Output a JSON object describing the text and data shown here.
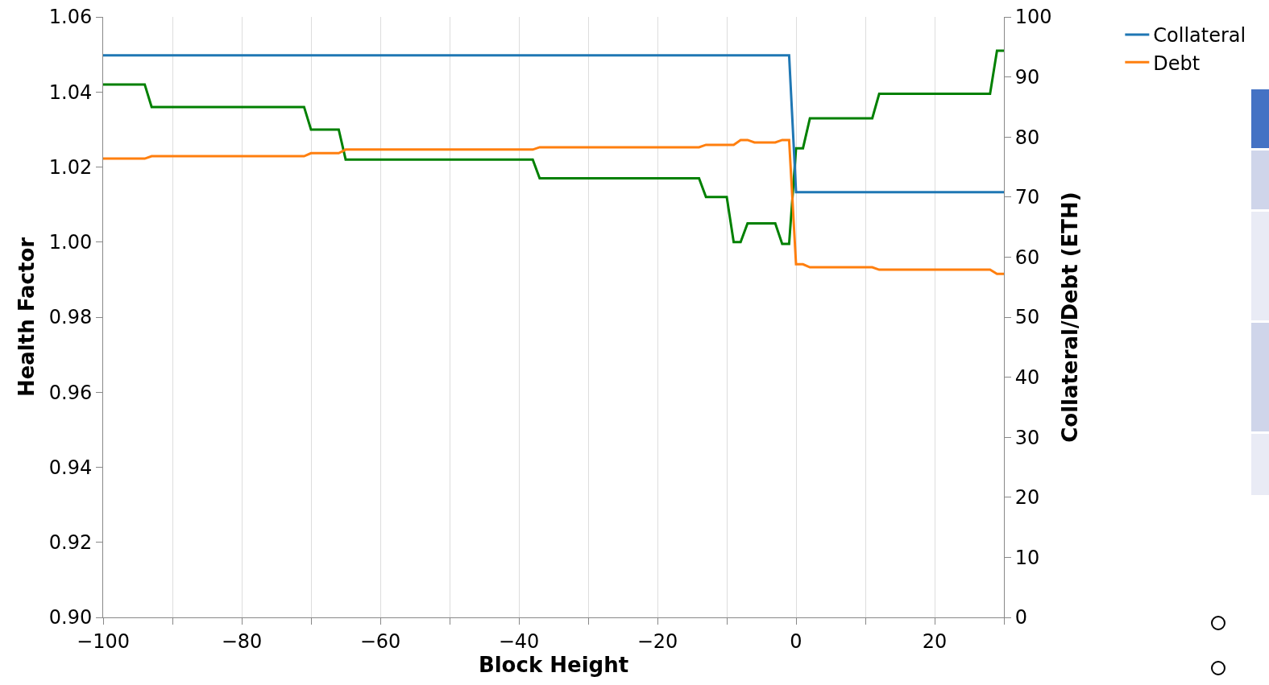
{
  "chart_data": {
    "type": "line",
    "xlabel": "Block Height",
    "ylabel": "Health Factor",
    "y2label": "Collateral/Debt (ETH)",
    "xlim": [
      -100,
      30
    ],
    "xticks": [
      {
        "value": -100,
        "label": "−100"
      },
      {
        "value": -90,
        "label": null
      },
      {
        "value": -80,
        "label": "−80"
      },
      {
        "value": -70,
        "label": null
      },
      {
        "value": -60,
        "label": "−60"
      },
      {
        "value": -50,
        "label": null
      },
      {
        "value": -40,
        "label": "−40"
      },
      {
        "value": -30,
        "label": null
      },
      {
        "value": -20,
        "label": "−20"
      },
      {
        "value": -10,
        "label": null
      },
      0,
      {
        "value": 10,
        "label": null
      },
      20,
      {
        "value": 30,
        "label": null
      }
    ],
    "ylim": [
      0.9,
      1.06
    ],
    "yticks": [
      {
        "value": 0.9,
        "label": "0.90"
      },
      0.92,
      0.94,
      0.96,
      0.98,
      {
        "value": 1.0,
        "label": "1.00"
      },
      1.02,
      1.04,
      1.06
    ],
    "y2lim": [
      0,
      100
    ],
    "y2ticks": [
      0,
      10,
      20,
      30,
      40,
      50,
      60,
      70,
      80,
      90,
      100
    ],
    "grid": "x",
    "legend": "top right",
    "marker": "none",
    "line_style": "solid",
    "series": [
      {
        "name": "Collateral",
        "color": "#1f77b4",
        "axis": "y2",
        "x": [
          -100,
          -1,
          0,
          30
        ],
        "values": [
          93.6,
          93.6,
          70.8,
          70.8
        ]
      },
      {
        "name": "Debt",
        "color": "#ff7f0e",
        "axis": "y2",
        "x": [
          -100,
          -94,
          -93,
          -71,
          -70,
          -66,
          -65,
          -38,
          -37,
          -14,
          -13,
          -9,
          -8,
          -7,
          -6,
          -3,
          -2,
          -1,
          0,
          1,
          2,
          11,
          12,
          28,
          29,
          30
        ],
        "values": [
          76.4,
          76.4,
          76.8,
          76.8,
          77.3,
          77.3,
          77.9,
          77.9,
          78.3,
          78.3,
          78.7,
          78.7,
          79.5,
          79.5,
          79.1,
          79.1,
          79.5,
          79.5,
          58.8,
          58.8,
          58.3,
          58.3,
          57.9,
          57.9,
          57.2,
          57.2
        ]
      },
      {
        "color": "#008000",
        "axis": "y",
        "x": [
          -100,
          -94,
          -93,
          -71,
          -70,
          -66,
          -65,
          -38,
          -37,
          -14,
          -13,
          -10,
          -9,
          -8,
          -7,
          -6,
          -3,
          -2,
          -1,
          0,
          1,
          2,
          11,
          12,
          28,
          29,
          30
        ],
        "values": [
          1.042,
          1.042,
          1.036,
          1.036,
          1.03,
          1.03,
          1.022,
          1.022,
          1.017,
          1.017,
          1.012,
          1.012,
          1.0,
          1.0,
          1.005,
          1.005,
          1.005,
          0.9995,
          0.9995,
          1.025,
          1.025,
          1.033,
          1.033,
          1.0395,
          1.0395,
          1.051,
          1.051
        ]
      }
    ]
  }
}
